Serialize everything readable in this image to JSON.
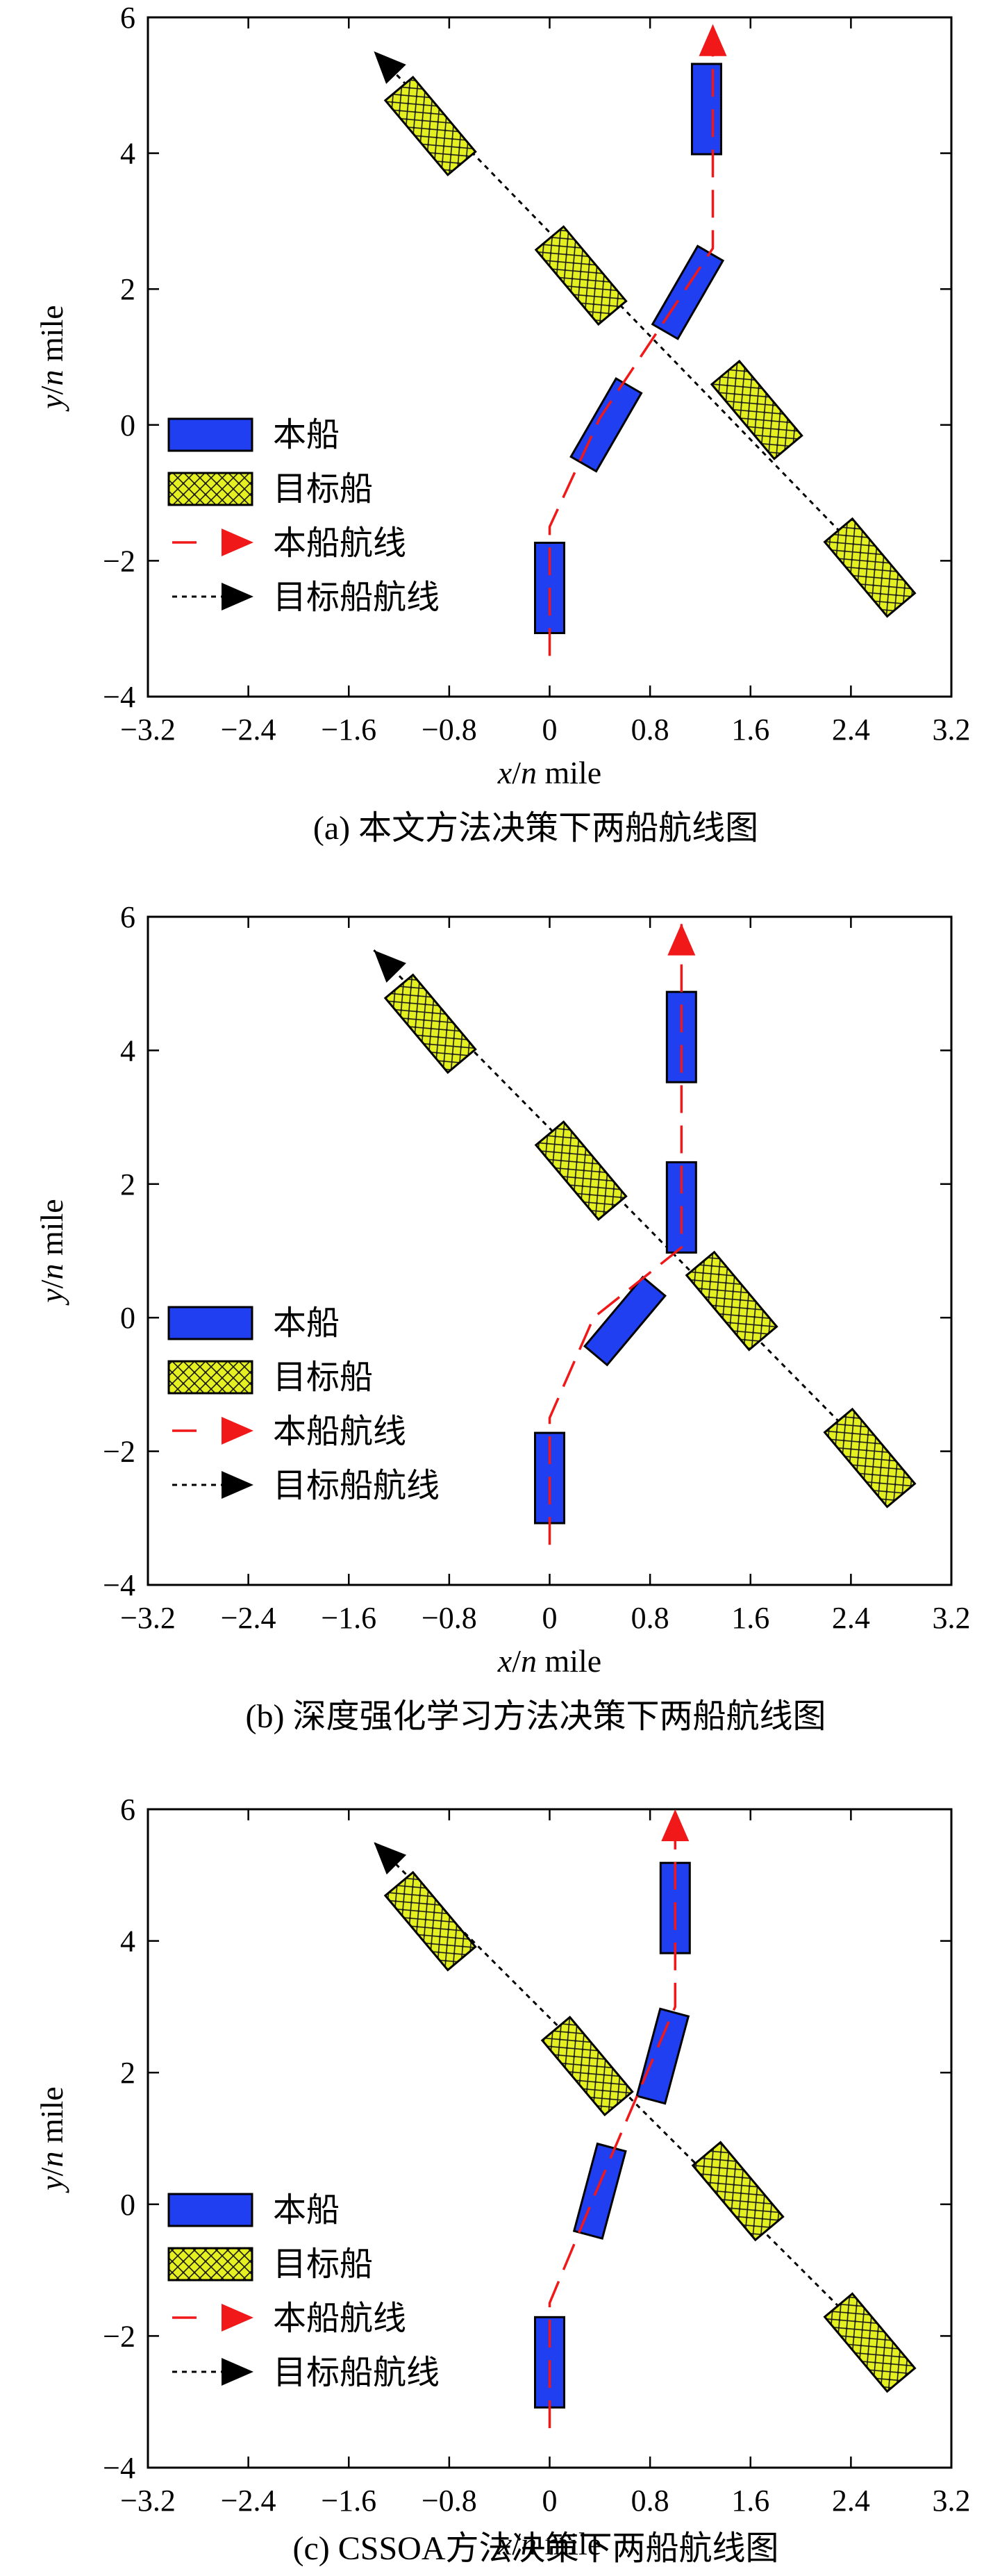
{
  "figure": {
    "colors": {
      "own_ship_fill": "#1f3ff0",
      "target_ship_fill": "#e4f020",
      "own_route": "#f01818",
      "target_route": "#000000",
      "frame": "#000000"
    },
    "icons": {
      "own_route_arrow": "red-arrowhead-icon",
      "target_route_arrow": "black-arrowhead-icon"
    },
    "legend": {
      "own_ship": "本船",
      "target_ship": "目标船",
      "own_route": "本船航线",
      "target_route": "目标船航线"
    }
  },
  "chart_data": [
    {
      "type": "scatter",
      "caption": "(a) 本文方法决策下两船航线图",
      "xlabel_var": "x",
      "ylabel_var": "y",
      "label_sep": "/",
      "label_unit_var": "n",
      "label_unit_word": " mile",
      "xlim": [
        -3.2,
        3.2
      ],
      "ylim": [
        -4,
        6
      ],
      "xticks": [
        "−3.2",
        "−2.4",
        "−1.6",
        "−0.8",
        "0",
        "0.8",
        "1.6",
        "2.4",
        "3.2"
      ],
      "yticks": [
        "−4",
        "−2",
        "0",
        "2",
        "4",
        "6"
      ],
      "own_route": [
        [
          0,
          -3.4
        ],
        [
          0,
          -1.5
        ],
        [
          0.4,
          0.1
        ],
        [
          1.3,
          2.6
        ],
        [
          1.3,
          5.9
        ]
      ],
      "target_route": [
        [
          2.8,
          -2.5
        ],
        [
          -1.4,
          5.5
        ]
      ],
      "own_ship_positions": [
        {
          "x": 0,
          "y": -2.4,
          "heading": 0
        },
        {
          "x": 0.45,
          "y": 0,
          "heading": 30
        },
        {
          "x": 1.1,
          "y": 1.95,
          "heading": 30
        },
        {
          "x": 1.25,
          "y": 4.65,
          "heading": 0
        }
      ],
      "target_ship_positions": [
        {
          "x": 2.55,
          "y": -2.1,
          "heading": -40
        },
        {
          "x": 1.65,
          "y": 0.22,
          "heading": -40
        },
        {
          "x": 0.25,
          "y": 2.2,
          "heading": -40
        },
        {
          "x": -0.95,
          "y": 4.4,
          "heading": -40
        }
      ]
    },
    {
      "type": "scatter",
      "caption": "(b) 深度强化学习方法决策下两船航线图",
      "xlabel_var": "x",
      "ylabel_var": "y",
      "label_sep": "/",
      "label_unit_var": "n",
      "label_unit_word": " mile",
      "xlim": [
        -3.2,
        3.2
      ],
      "ylim": [
        -4,
        6
      ],
      "xticks": [
        "−3.2",
        "−2.4",
        "−1.6",
        "−0.8",
        "0",
        "0.8",
        "1.6",
        "2.4",
        "3.2"
      ],
      "yticks": [
        "−4",
        "−2",
        "0",
        "2",
        "4",
        "6"
      ],
      "own_route": [
        [
          0,
          -3.4
        ],
        [
          0,
          -1.5
        ],
        [
          0.35,
          0.0
        ],
        [
          1.05,
          1.05
        ],
        [
          1.05,
          5.9
        ]
      ],
      "target_route": [
        [
          2.8,
          -2.5
        ],
        [
          -1.4,
          5.5
        ]
      ],
      "own_ship_positions": [
        {
          "x": 0,
          "y": -2.4,
          "heading": 0
        },
        {
          "x": 0.6,
          "y": -0.05,
          "heading": 40
        },
        {
          "x": 1.05,
          "y": 1.65,
          "heading": 0
        },
        {
          "x": 1.05,
          "y": 4.2,
          "heading": 0
        }
      ],
      "target_ship_positions": [
        {
          "x": 2.55,
          "y": -2.1,
          "heading": -40
        },
        {
          "x": 1.45,
          "y": 0.25,
          "heading": -40
        },
        {
          "x": 0.25,
          "y": 2.2,
          "heading": -40
        },
        {
          "x": -0.95,
          "y": 4.4,
          "heading": -40
        }
      ]
    },
    {
      "type": "scatter",
      "caption": "(c) CSSOA方法决策下两船航线图",
      "xlabel_var": "x",
      "ylabel_var": "y",
      "label_sep": "/",
      "label_unit_var": "n",
      "label_unit_word": " mile",
      "xlim": [
        -3.2,
        3.2
      ],
      "ylim": [
        -4,
        6
      ],
      "xticks": [
        "−3.2",
        "−2.4",
        "−1.6",
        "−0.8",
        "0",
        "0.8",
        "1.6",
        "2.4",
        "3.2"
      ],
      "yticks": [
        "−4",
        "−2",
        "0",
        "2",
        "4",
        "6"
      ],
      "own_route": [
        [
          0,
          -3.4
        ],
        [
          0,
          -1.5
        ],
        [
          0.35,
          0.1
        ],
        [
          1.0,
          3.0
        ],
        [
          1.0,
          6.0
        ]
      ],
      "target_route": [
        [
          2.8,
          -2.5
        ],
        [
          -1.4,
          5.5
        ]
      ],
      "own_ship_positions": [
        {
          "x": 0,
          "y": -2.4,
          "heading": 0
        },
        {
          "x": 0.4,
          "y": 0.2,
          "heading": 15
        },
        {
          "x": 0.9,
          "y": 2.25,
          "heading": 15
        },
        {
          "x": 1.0,
          "y": 4.5,
          "heading": 0
        }
      ],
      "target_ship_positions": [
        {
          "x": 2.55,
          "y": -2.1,
          "heading": -40
        },
        {
          "x": 1.5,
          "y": 0.2,
          "heading": -40
        },
        {
          "x": 0.3,
          "y": 2.1,
          "heading": -40
        },
        {
          "x": -0.95,
          "y": 4.3,
          "heading": -40
        }
      ]
    }
  ]
}
